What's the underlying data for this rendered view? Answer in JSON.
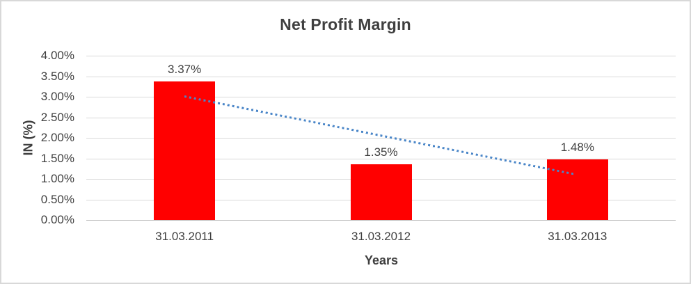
{
  "chart_data": {
    "type": "bar",
    "title": "Net Profit Margin",
    "xlabel": "Years",
    "ylabel": "IN (%)",
    "categories": [
      "31.03.2011",
      "31.03.2012",
      "31.03.2013"
    ],
    "values": [
      3.37,
      1.35,
      1.48
    ],
    "value_labels": [
      "3.37%",
      "1.35%",
      "1.48%"
    ],
    "ylim": [
      0,
      4
    ],
    "ytick_step": 0.5,
    "ytick_labels": [
      "4.00%",
      "3.50%",
      "3.00%",
      "2.50%",
      "2.00%",
      "1.50%",
      "1.00%",
      "0.50%",
      "0.00%"
    ],
    "grid": true,
    "legend": "none",
    "trendline": {
      "type": "linear",
      "style": "dotted",
      "start_value": 3.01,
      "end_value": 1.12
    },
    "colors": {
      "bar": "#ff0000",
      "trendline": "#4a86c8",
      "gridline": "#d9d9d9",
      "axis_line": "#bfbfbf",
      "text": "#3f3f3f",
      "background": "#ffffff",
      "border": "#d8d8d8"
    }
  }
}
